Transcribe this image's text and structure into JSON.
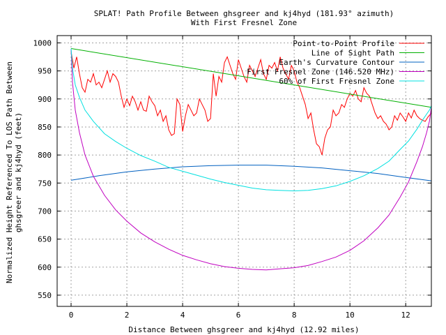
{
  "chart_data": {
    "type": "line",
    "title": "SPLAT! Path Profile Between ghsgreer and kj4hyd (181.93° azimuth)",
    "subtitle": "With First Fresnel Zone",
    "xlabel": "Distance Between ghsgreer and kj4hyd (12.92 miles)",
    "ylabel_line1": "Normalized Height Referenced To LOS Path Between",
    "ylabel_line2": "ghsgreer and kj4hyd (feet)",
    "xlim": [
      -0.5,
      12.92
    ],
    "ylim": [
      530,
      1013
    ],
    "xticks": [
      0,
      2,
      4,
      6,
      8,
      10,
      12
    ],
    "yticks": [
      550,
      600,
      650,
      700,
      750,
      800,
      850,
      900,
      950,
      1000
    ],
    "grid": true,
    "legend_position": "top-right",
    "series": [
      {
        "name": "Point-to-Point Profile",
        "color": "#ff0000",
        "x": [
          0,
          0.1,
          0.2,
          0.3,
          0.4,
          0.5,
          0.6,
          0.7,
          0.8,
          0.9,
          1.0,
          1.1,
          1.2,
          1.3,
          1.4,
          1.5,
          1.6,
          1.7,
          1.8,
          1.9,
          2.0,
          2.1,
          2.2,
          2.3,
          2.4,
          2.5,
          2.6,
          2.7,
          2.8,
          2.9,
          3.0,
          3.1,
          3.2,
          3.3,
          3.4,
          3.5,
          3.6,
          3.7,
          3.8,
          3.9,
          4.0,
          4.1,
          4.2,
          4.3,
          4.4,
          4.5,
          4.6,
          4.7,
          4.8,
          4.9,
          5.0,
          5.1,
          5.2,
          5.3,
          5.4,
          5.5,
          5.6,
          5.7,
          5.8,
          5.9,
          6.0,
          6.1,
          6.2,
          6.3,
          6.4,
          6.5,
          6.6,
          6.7,
          6.8,
          6.9,
          7.0,
          7.1,
          7.2,
          7.3,
          7.4,
          7.5,
          7.6,
          7.7,
          7.8,
          7.9,
          8.0,
          8.1,
          8.2,
          8.3,
          8.4,
          8.5,
          8.6,
          8.7,
          8.8,
          8.9,
          9.0,
          9.1,
          9.2,
          9.3,
          9.4,
          9.5,
          9.6,
          9.7,
          9.8,
          9.9,
          10.0,
          10.1,
          10.2,
          10.3,
          10.4,
          10.5,
          10.6,
          10.7,
          10.8,
          10.9,
          11.0,
          11.1,
          11.2,
          11.3,
          11.4,
          11.5,
          11.6,
          11.7,
          11.8,
          11.9,
          12.0,
          12.1,
          12.2,
          12.3,
          12.4,
          12.5,
          12.6,
          12.7,
          12.8,
          12.92
        ],
        "values": [
          985,
          955,
          975,
          945,
          920,
          912,
          935,
          930,
          945,
          925,
          930,
          920,
          935,
          950,
          930,
          945,
          940,
          930,
          905,
          885,
          900,
          888,
          905,
          895,
          880,
          895,
          880,
          878,
          905,
          895,
          888,
          870,
          880,
          860,
          870,
          845,
          835,
          838,
          900,
          890,
          842,
          870,
          890,
          880,
          870,
          875,
          900,
          890,
          880,
          860,
          865,
          945,
          905,
          940,
          930,
          965,
          975,
          960,
          945,
          935,
          970,
          955,
          940,
          930,
          960,
          950,
          940,
          955,
          970,
          945,
          935,
          960,
          955,
          965,
          950,
          975,
          955,
          945,
          935,
          960,
          950,
          930,
          920,
          905,
          890,
          865,
          875,
          845,
          820,
          815,
          800,
          830,
          845,
          850,
          880,
          870,
          875,
          890,
          885,
          900,
          910,
          905,
          915,
          900,
          895,
          920,
          910,
          905,
          890,
          875,
          865,
          870,
          860,
          855,
          845,
          850,
          870,
          862,
          875,
          868,
          860,
          875,
          866,
          880,
          870,
          865,
          862,
          860,
          868,
          875
        ]
      },
      {
        "name": "Line of Sight Path",
        "color": "#00b000",
        "x": [
          0,
          12.92
        ],
        "values": [
          990,
          885
        ]
      },
      {
        "name": "Earth's Curvature Contour",
        "color": "#0060c0",
        "x": [
          0,
          1,
          2,
          3,
          4,
          5,
          6,
          6.46,
          7,
          8,
          9,
          10,
          11,
          12,
          12.92
        ],
        "values": [
          755,
          763,
          770,
          775,
          779,
          781,
          782,
          782,
          782,
          780,
          777,
          772,
          767,
          760,
          754
        ]
      },
      {
        "name": "First Fresnel Zone (146.520 MHz)",
        "color": "#c000c0",
        "x": [
          0,
          0.05,
          0.15,
          0.3,
          0.5,
          0.8,
          1.2,
          1.6,
          2.0,
          2.5,
          3.0,
          3.5,
          4.0,
          4.5,
          5.0,
          5.5,
          6.0,
          6.5,
          7.0,
          7.46,
          8.0,
          8.5,
          9.0,
          9.5,
          10.0,
          10.5,
          11.0,
          11.4,
          11.8,
          12.1,
          12.4,
          12.6,
          12.75,
          12.85,
          12.92
        ],
        "values": [
          990,
          930,
          880,
          840,
          800,
          762,
          728,
          702,
          682,
          661,
          645,
          632,
          621,
          613,
          606,
          601,
          598,
          596,
          595,
          597,
          599,
          603,
          610,
          618,
          630,
          647,
          670,
          693,
          725,
          752,
          788,
          815,
          840,
          860,
          885
        ]
      },
      {
        "name": "60% of First Fresnel Zone",
        "color": "#00e0e0",
        "x": [
          0,
          0.05,
          0.15,
          0.3,
          0.5,
          0.8,
          1.2,
          1.6,
          2.0,
          2.5,
          3.0,
          3.5,
          4.0,
          4.5,
          5.0,
          5.5,
          6.0,
          6.5,
          7.0,
          7.46,
          8.0,
          8.5,
          9.0,
          9.5,
          10.0,
          10.5,
          11.0,
          11.4,
          11.8,
          12.1,
          12.4,
          12.6,
          12.75,
          12.85,
          12.92
        ],
        "values": [
          990,
          955,
          925,
          903,
          880,
          860,
          838,
          824,
          812,
          799,
          789,
          778,
          771,
          764,
          757,
          751,
          746,
          741,
          738,
          737,
          736,
          737,
          740,
          745,
          753,
          763,
          776,
          789,
          810,
          825,
          846,
          862,
          873,
          880,
          888
        ]
      }
    ]
  }
}
